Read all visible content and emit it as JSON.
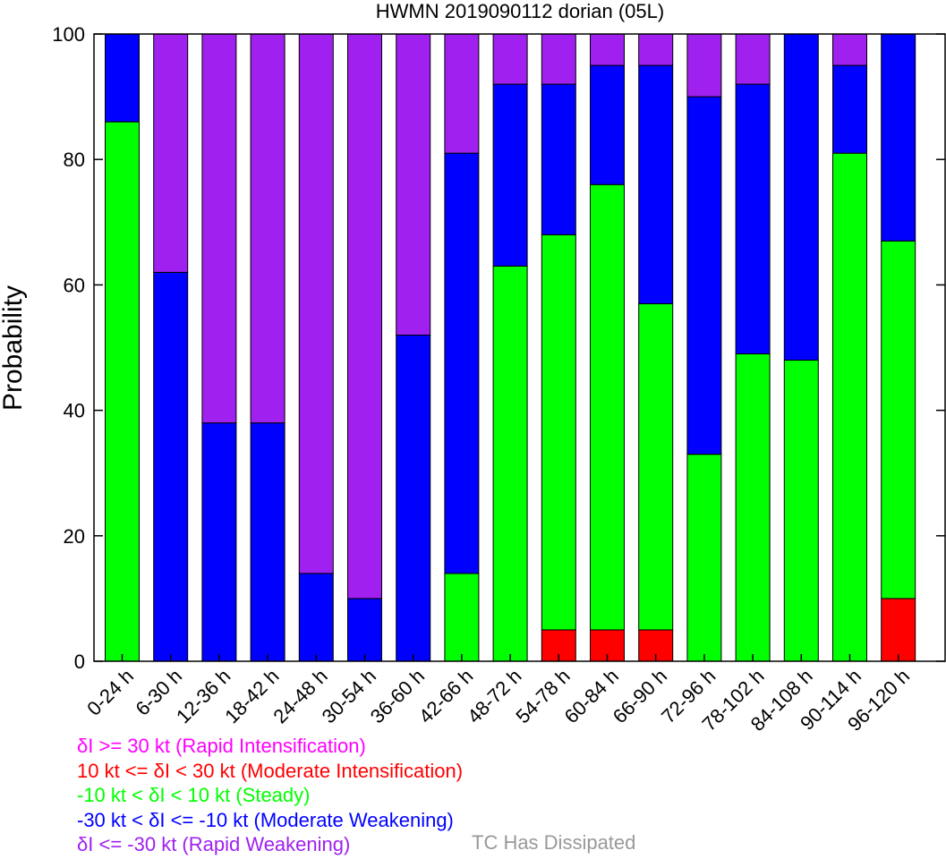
{
  "chart_data": {
    "type": "bar",
    "stacked": true,
    "title": "HWMN 2019090112 dorian (05L)",
    "ylabel": "Probability",
    "ylim": [
      0,
      100
    ],
    "yticks": [
      0,
      20,
      40,
      60,
      80,
      100
    ],
    "categories": [
      "0-24 h",
      "6-30 h",
      "12-36 h",
      "18-42 h",
      "24-48 h",
      "30-54 h",
      "36-60 h",
      "42-66 h",
      "48-72 h",
      "54-78 h",
      "60-84 h",
      "66-90 h",
      "72-96 h",
      "78-102 h",
      "84-108 h",
      "90-114 h",
      "96-120 h"
    ],
    "series": [
      {
        "key": "mi",
        "color": "#ff0000",
        "values": [
          0,
          0,
          0,
          0,
          0,
          0,
          0,
          0,
          0,
          5,
          5,
          5,
          0,
          0,
          0,
          0,
          10
        ]
      },
      {
        "key": "st",
        "color": "#00ff00",
        "values": [
          86,
          0,
          0,
          0,
          0,
          0,
          0,
          14,
          63,
          63,
          71,
          52,
          33,
          49,
          48,
          81,
          57
        ]
      },
      {
        "key": "mw",
        "color": "#0000ff",
        "values": [
          14,
          62,
          38,
          38,
          14,
          10,
          52,
          67,
          29,
          24,
          19,
          38,
          57,
          43,
          52,
          14,
          33
        ]
      },
      {
        "key": "rw",
        "color": "#a020f0",
        "values": [
          0,
          38,
          62,
          62,
          86,
          90,
          48,
          19,
          8,
          8,
          5,
          5,
          10,
          8,
          0,
          5,
          0
        ]
      },
      {
        "key": "ri",
        "color": "#ff00ff",
        "values": [
          0,
          0,
          0,
          0,
          0,
          0,
          0,
          0,
          0,
          0,
          0,
          0,
          0,
          0,
          0,
          0,
          0
        ]
      }
    ],
    "grid": false
  },
  "legend": [
    {
      "text": "δI >= 30 kt (Rapid Intensification)",
      "color": "#ff00ff"
    },
    {
      "text": "10 kt <= δI < 30 kt (Moderate Intensification)",
      "color": "#ff0000"
    },
    {
      "text": "-10 kt < δI < 10 kt (Steady)",
      "color": "#00ff00"
    },
    {
      "text": "-30 kt < δI <= -10 kt (Moderate Weakening)",
      "color": "#0000ff"
    },
    {
      "text": "δI <= -30 kt (Rapid Weakening)",
      "color": "#a020f0"
    }
  ],
  "dissipated": {
    "text": "TC Has Dissipated",
    "color": "#999999"
  }
}
